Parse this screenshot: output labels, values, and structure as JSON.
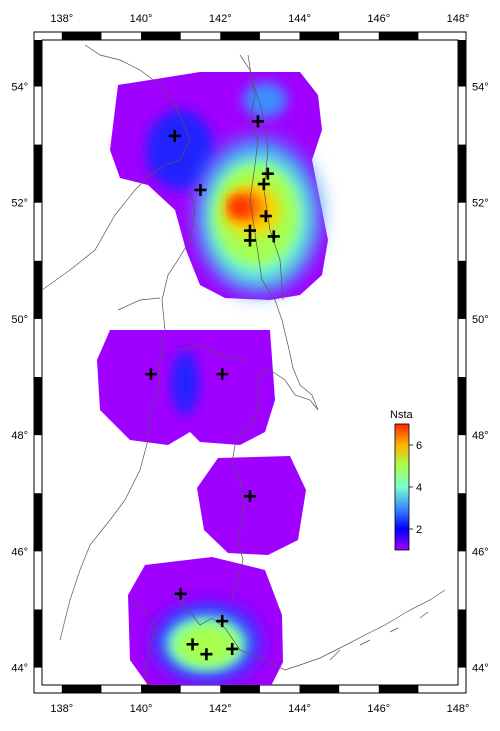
{
  "map": {
    "lon_range": [
      137.5,
      148.0
    ],
    "lat_range": [
      43.7,
      54.8
    ],
    "lon_ticks": [
      138,
      140,
      142,
      144,
      146,
      148
    ],
    "lon_tick_labels": [
      "138°",
      "140°",
      "142°",
      "144°",
      "146°",
      "148°"
    ],
    "lat_ticks": [
      44,
      46,
      48,
      50,
      52,
      54
    ],
    "lat_tick_labels": [
      "44°",
      "46°",
      "48°",
      "50°",
      "52°",
      "54°"
    ],
    "background_color": "#ffffff",
    "coastline_color": "#555555"
  },
  "legend": {
    "title": "Nsta",
    "tick_values": [
      2,
      4,
      6
    ],
    "tick_labels": [
      "2",
      "4",
      "6"
    ],
    "min": 1,
    "max": 7,
    "colors": [
      "#a000ff",
      "#0000ff",
      "#3c8cff",
      "#78ffd0",
      "#a6ff50",
      "#ffb400",
      "#ff2800"
    ]
  },
  "coverage_blobs": [
    {
      "name": "north-region",
      "lon": [
        140.0,
        144.5
      ],
      "lat": [
        50.4,
        54.0
      ],
      "value": 1
    },
    {
      "name": "central-west",
      "lon": [
        139.5,
        141.5
      ],
      "lat": [
        48.2,
        49.9
      ],
      "value": 1
    },
    {
      "name": "central-east",
      "lon": [
        141.0,
        143.4
      ],
      "lat": [
        48.2,
        49.9
      ],
      "value": 1
    },
    {
      "name": "central-gap",
      "lon": [
        140.8,
        141.6
      ],
      "lat": [
        48.6,
        49.6
      ],
      "value": 2
    },
    {
      "name": "south-central",
      "lon": [
        141.4,
        144.0
      ],
      "lat": [
        46.2,
        47.7
      ],
      "value": 1
    },
    {
      "name": "south-region",
      "lon": [
        139.7,
        143.4
      ],
      "lat": [
        43.75,
        45.9
      ],
      "value": 1
    }
  ],
  "stations": [
    {
      "lon": 140.85,
      "lat": 53.15
    },
    {
      "lon": 142.95,
      "lat": 53.4
    },
    {
      "lon": 143.2,
      "lat": 52.5
    },
    {
      "lon": 143.1,
      "lat": 52.32
    },
    {
      "lon": 141.5,
      "lat": 52.22
    },
    {
      "lon": 143.15,
      "lat": 51.77
    },
    {
      "lon": 142.75,
      "lat": 51.52
    },
    {
      "lon": 143.35,
      "lat": 51.42
    },
    {
      "lon": 142.75,
      "lat": 51.35
    },
    {
      "lon": 140.25,
      "lat": 49.05
    },
    {
      "lon": 142.05,
      "lat": 49.05
    },
    {
      "lon": 142.75,
      "lat": 46.95
    },
    {
      "lon": 141.0,
      "lat": 45.27
    },
    {
      "lon": 142.05,
      "lat": 44.8
    },
    {
      "lon": 141.3,
      "lat": 44.4
    },
    {
      "lon": 142.3,
      "lat": 44.32
    },
    {
      "lon": 141.65,
      "lat": 44.23
    }
  ]
}
